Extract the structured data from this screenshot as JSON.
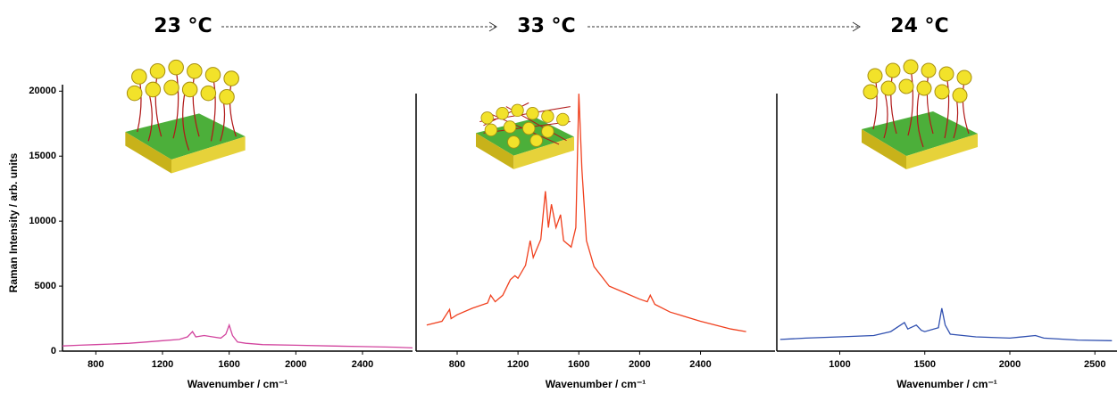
{
  "chart_data": [
    {
      "type": "line",
      "title": "23 °C",
      "x_label": "Wavenumber / cm⁻¹",
      "y_label": "Raman Intensity / arb. units",
      "xlim": [
        600,
        2700
      ],
      "xticks": [
        800,
        1200,
        1600,
        2000,
        2400
      ],
      "ylim": [
        0,
        20500
      ],
      "yticks": [
        0,
        5000,
        10000,
        15000,
        20000
      ],
      "series": [
        {
          "color": "#d2449e",
          "x": [
            600,
            700,
            800,
            900,
            1000,
            1100,
            1200,
            1300,
            1350,
            1380,
            1400,
            1450,
            1500,
            1550,
            1580,
            1600,
            1620,
            1650,
            1700,
            1800,
            2000,
            2200,
            2400,
            2600,
            2700
          ],
          "values": [
            400,
            450,
            500,
            550,
            600,
            700,
            800,
            900,
            1100,
            1500,
            1100,
            1200,
            1100,
            1000,
            1300,
            2000,
            1200,
            700,
            600,
            500,
            450,
            400,
            350,
            300,
            250
          ]
        }
      ]
    },
    {
      "type": "line",
      "title": "33 °C",
      "x_label": "Wavenumber / cm⁻¹",
      "xlim": [
        530,
        2890
      ],
      "xticks": [
        800,
        1200,
        1600,
        2000,
        2400
      ],
      "ylim": [
        0,
        20500
      ],
      "series": [
        {
          "color": "#f0401e",
          "x": [
            600,
            700,
            750,
            760,
            800,
            900,
            1000,
            1020,
            1050,
            1100,
            1150,
            1180,
            1200,
            1250,
            1280,
            1300,
            1350,
            1380,
            1400,
            1420,
            1450,
            1480,
            1500,
            1550,
            1580,
            1600,
            1620,
            1650,
            1700,
            1800,
            1900,
            2000,
            2050,
            2070,
            2100,
            2200,
            2400,
            2600,
            2700
          ],
          "values": [
            2000,
            2300,
            3200,
            2500,
            2800,
            3300,
            3700,
            4300,
            3800,
            4300,
            5500,
            5800,
            5600,
            6600,
            8500,
            7200,
            8600,
            12300,
            9500,
            11300,
            9500,
            10500,
            8500,
            8000,
            9500,
            19800,
            14000,
            8500,
            6500,
            5000,
            4500,
            4000,
            3800,
            4300,
            3600,
            3000,
            2300,
            1700,
            1500
          ]
        }
      ]
    },
    {
      "type": "line",
      "title": "24 °C",
      "x_label": "Wavenumber / cm⁻¹",
      "xlim": [
        630,
        2630
      ],
      "xticks": [
        1000,
        1500,
        2000,
        2500
      ],
      "ylim": [
        0,
        20500
      ],
      "series": [
        {
          "color": "#3050b0",
          "x": [
            650,
            800,
            1000,
            1200,
            1300,
            1380,
            1400,
            1450,
            1480,
            1500,
            1580,
            1600,
            1620,
            1650,
            1800,
            2000,
            2150,
            2200,
            2400,
            2600
          ],
          "values": [
            900,
            1000,
            1100,
            1200,
            1500,
            2200,
            1700,
            2000,
            1600,
            1500,
            1800,
            3300,
            2000,
            1300,
            1100,
            1000,
            1200,
            1000,
            850,
            800
          ]
        }
      ]
    }
  ]
}
